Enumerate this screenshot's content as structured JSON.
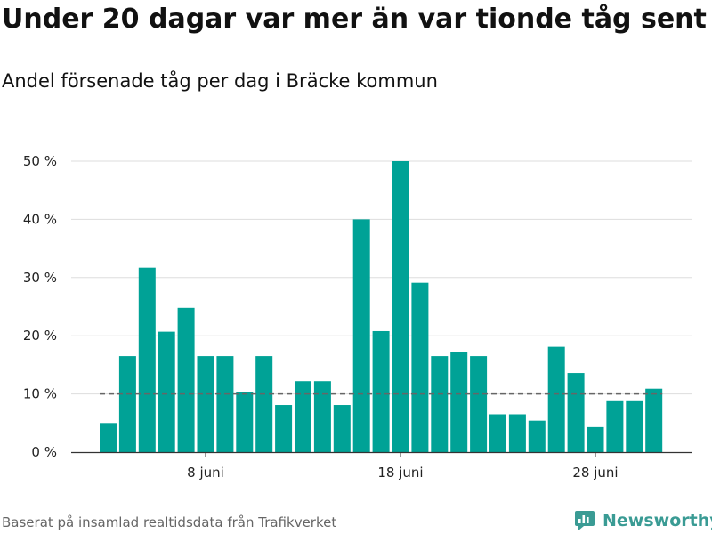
{
  "title": "Under 20 dagar var mer än var tionde tåg sent",
  "subtitle": "Andel försenade tåg per dag i Bräcke kommun",
  "footer": "Baserat på insamlad realtidsdata från Trafikverket",
  "brand": {
    "name": "Newsworthy",
    "icon": "newsworthy-logo-icon",
    "color": "#3a9b94"
  },
  "colors": {
    "bar": "#00a296",
    "reference_line": "#666666",
    "grid": "#dddddd"
  },
  "chart_data": {
    "type": "bar",
    "x_start": "2019-06-03",
    "x_end": "2019-07-01",
    "x": [
      "2019-06-03",
      "2019-06-04",
      "2019-06-05",
      "2019-06-06",
      "2019-06-07",
      "2019-06-08",
      "2019-06-09",
      "2019-06-10",
      "2019-06-11",
      "2019-06-12",
      "2019-06-13",
      "2019-06-14",
      "2019-06-15",
      "2019-06-16",
      "2019-06-17",
      "2019-06-18",
      "2019-06-19",
      "2019-06-20",
      "2019-06-21",
      "2019-06-22",
      "2019-06-23",
      "2019-06-24",
      "2019-06-25",
      "2019-06-26",
      "2019-06-27",
      "2019-06-28",
      "2019-06-29",
      "2019-06-30",
      "2019-07-01"
    ],
    "values": [
      5,
      16.5,
      31.7,
      20.7,
      24.8,
      16.5,
      16.5,
      10.3,
      16.5,
      8.1,
      12.2,
      12.2,
      8.1,
      40,
      20.8,
      50,
      29.1,
      16.5,
      17.2,
      16.5,
      6.5,
      6.5,
      5.4,
      18.1,
      13.6,
      4.3,
      8.9,
      8.9,
      10.9
    ],
    "reference_line": 10,
    "ylim": [
      0,
      50
    ],
    "yticks": [
      0,
      10,
      20,
      30,
      40,
      50
    ],
    "ytick_labels": [
      "0 %",
      "10 %",
      "20 %",
      "30 %",
      "40 %",
      "50 %"
    ],
    "xticks": [
      {
        "date": "2019-06-08",
        "label": "8 juni"
      },
      {
        "date": "2019-06-18",
        "label": "18 juni"
      },
      {
        "date": "2019-06-28",
        "label": "28 juni"
      }
    ],
    "grid": true,
    "legend": "none",
    "xlabel": "",
    "ylabel": ""
  }
}
